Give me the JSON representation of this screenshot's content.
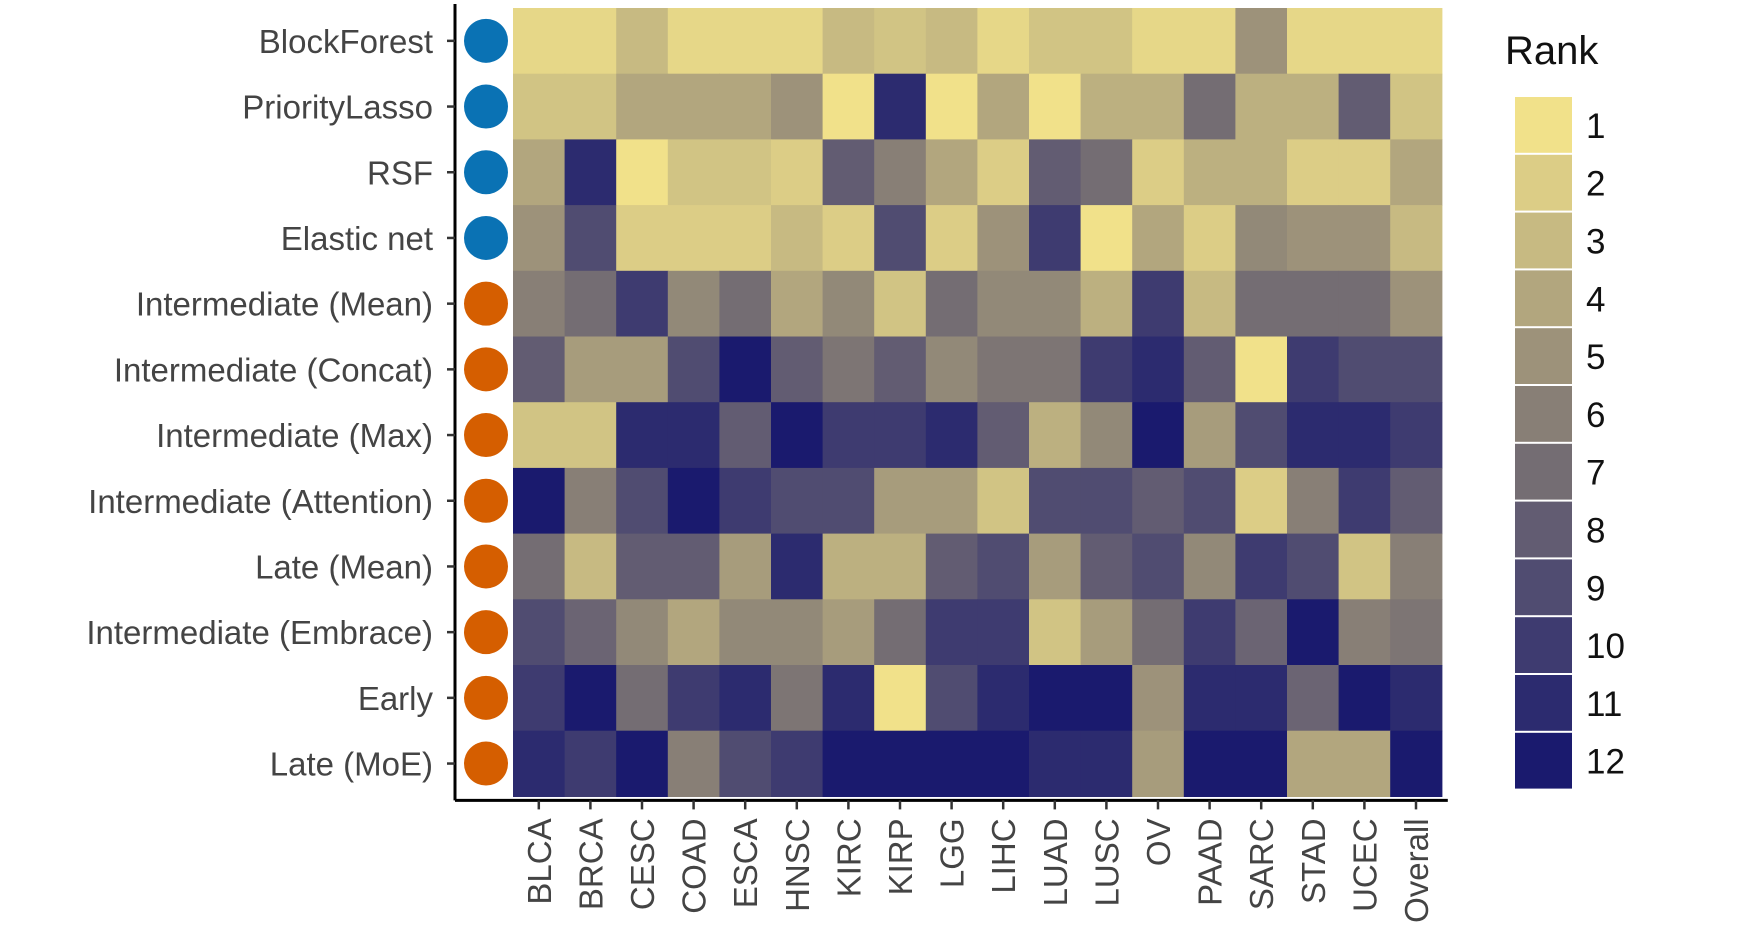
{
  "chart_data": {
    "type": "heatmap",
    "rows": [
      "BlockForest",
      "PriorityLasso",
      "RSF",
      "Elastic net",
      "Intermediate (Mean)",
      "Intermediate (Concat)",
      "Intermediate (Max)",
      "Intermediate (Attention)",
      "Late (Mean)",
      "Intermediate (Embrace)",
      "Early",
      "Late (MoE)"
    ],
    "row_group_colors": [
      "#0a72b4",
      "#0a72b4",
      "#0a72b4",
      "#0a72b4",
      "#d55e00",
      "#d55e00",
      "#d55e00",
      "#d55e00",
      "#d55e00",
      "#d55e00",
      "#d55e00",
      "#d55e00"
    ],
    "columns": [
      "BLCA",
      "BRCA",
      "CESC",
      "COAD",
      "ESCA",
      "HNSC",
      "KIRC",
      "KIRP",
      "LGG",
      "LIHC",
      "LUAD",
      "LUSC",
      "OV",
      "PAAD",
      "SARC",
      "STAD",
      "UCEC",
      "Overall"
    ],
    "values": [
      [
        1.5,
        1.5,
        3,
        1.5,
        1.5,
        1.5,
        3,
        2.5,
        3,
        1.5,
        2.5,
        2.5,
        1.5,
        1.5,
        5,
        1.5,
        1.5,
        1.5
      ],
      [
        2.5,
        2.5,
        4,
        4,
        4,
        5,
        1,
        11,
        1,
        4,
        1,
        3.5,
        3.5,
        7,
        3.5,
        3.5,
        8,
        2.5
      ],
      [
        4,
        11,
        1,
        2.5,
        2.5,
        2,
        8,
        6,
        4,
        2,
        8,
        7,
        2,
        3.5,
        3.5,
        2,
        2,
        4
      ],
      [
        5,
        9,
        2,
        2,
        2,
        3,
        2,
        9,
        2,
        5,
        10,
        1,
        4,
        2,
        5.5,
        5,
        5,
        3
      ],
      [
        6,
        7,
        10,
        5.5,
        7,
        4,
        5.5,
        2.5,
        7,
        5.5,
        5.5,
        3.5,
        10,
        3,
        7,
        7,
        7,
        5
      ],
      [
        8,
        4.5,
        4.5,
        9,
        12,
        8,
        6.5,
        8,
        5.5,
        6.5,
        6.5,
        10,
        11,
        8,
        1,
        10,
        9,
        9
      ],
      [
        2.5,
        2.5,
        11,
        11,
        8,
        12,
        10,
        10,
        11,
        8,
        3.5,
        5.5,
        12,
        4.5,
        9,
        11,
        11,
        10
      ],
      [
        12,
        6,
        9,
        12,
        10,
        9,
        9,
        4.5,
        4.5,
        2.5,
        9,
        9,
        8,
        9,
        2,
        6,
        10,
        8
      ],
      [
        7,
        3,
        8,
        8,
        4.5,
        11,
        3.5,
        3.5,
        8,
        9,
        4.5,
        8,
        9,
        5.5,
        10,
        9,
        2.5,
        6
      ],
      [
        9,
        7.5,
        5.5,
        4,
        5.5,
        5.5,
        4.5,
        7,
        10,
        10,
        2.5,
        4.5,
        7,
        10,
        7.5,
        12,
        6,
        6.5
      ],
      [
        10,
        12,
        7,
        10,
        11,
        6.5,
        11,
        1,
        9,
        11,
        12,
        12,
        5,
        11,
        11,
        7.5,
        12,
        11
      ],
      [
        11,
        10,
        12,
        6,
        9,
        10,
        12,
        12,
        12,
        12,
        11,
        11,
        4.5,
        12,
        12,
        4,
        4,
        12
      ]
    ],
    "legend": {
      "title": "Rank",
      "labels": [
        "1",
        "2",
        "3",
        "4",
        "5",
        "6",
        "7",
        "8",
        "9",
        "10",
        "11",
        "12"
      ]
    },
    "colors": {
      "low": "#f1e18a",
      "mid": "#7d7574",
      "high": "#1a1a6e"
    },
    "xlabel": "",
    "ylabel": ""
  }
}
